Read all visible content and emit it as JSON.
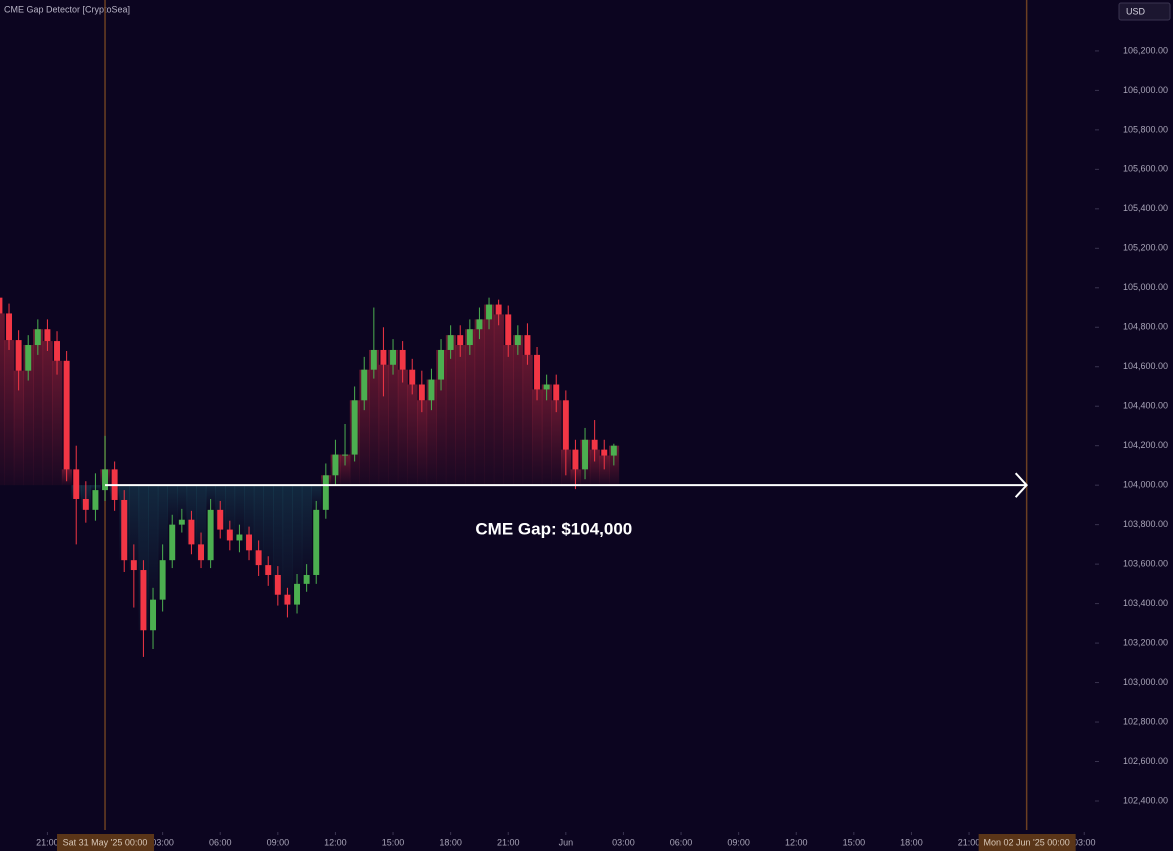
{
  "chart_data": {
    "type": "candlestick",
    "title": "CME Gap Detector [CryptoSea]",
    "currency": "USD",
    "x": [
      -5.5,
      -5,
      -4.5,
      -4,
      -3.5,
      -3,
      -2.5,
      -2,
      -1.5,
      -1,
      -0.5,
      0,
      0.5,
      1,
      1.5,
      2,
      2.5,
      3,
      3.5,
      4,
      4.5,
      5,
      5.5,
      6,
      6.5,
      7,
      7.5,
      8,
      8.5,
      9,
      9.5,
      10,
      10.5,
      11,
      11.5,
      12,
      12.5,
      13,
      13.5,
      14,
      14.5,
      15,
      15.5,
      16,
      16.5,
      17,
      17.5,
      18,
      18.5,
      19,
      19.5,
      20,
      20.5,
      21,
      21.5,
      22,
      22.5,
      23,
      23.5,
      24,
      24.5,
      25,
      25.5,
      26,
      26.5
    ],
    "open": [
      104950,
      104870,
      104735,
      104580,
      104710,
      104790,
      104730,
      104630,
      104080,
      103930,
      103875,
      103975,
      104080,
      103925,
      103620,
      103570,
      103265,
      103420,
      103620,
      103800,
      103825,
      103700,
      103620,
      103875,
      103775,
      103720,
      103750,
      103670,
      103595,
      103545,
      103445,
      103395,
      103500,
      103545,
      103875,
      104050,
      104155,
      104155,
      104430,
      104585,
      104685,
      104610,
      104685,
      104585,
      104510,
      104430,
      104535,
      104685,
      104760,
      104710,
      104790,
      104840,
      104915,
      104865,
      104710,
      104760,
      104660,
      104485,
      104510,
      104430,
      104180,
      104080,
      104230,
      104180,
      104150
    ],
    "high": [
      105000,
      104920,
      104785,
      104760,
      104840,
      104840,
      104780,
      104680,
      104200,
      104020,
      104060,
      104250,
      104120,
      103975,
      103700,
      103620,
      103480,
      103700,
      103850,
      103880,
      103870,
      103760,
      103930,
      103920,
      103820,
      103800,
      103790,
      103720,
      103640,
      103590,
      103480,
      103550,
      103600,
      103920,
      104110,
      104230,
      104310,
      104500,
      104650,
      104900,
      104800,
      104740,
      104730,
      104640,
      104580,
      104590,
      104740,
      104810,
      104810,
      104840,
      104900,
      104950,
      104940,
      104910,
      104810,
      104820,
      104700,
      104560,
      104560,
      104480,
      104230,
      104290,
      104330,
      104230,
      104210
    ],
    "low": [
      104820,
      104685,
      104480,
      104530,
      104660,
      104680,
      104560,
      104020,
      103700,
      103810,
      103820,
      103920,
      103870,
      103560,
      103380,
      103130,
      103170,
      103360,
      103580,
      103760,
      103650,
      103580,
      103580,
      103730,
      103670,
      103660,
      103620,
      103540,
      103490,
      103390,
      103330,
      103350,
      103460,
      103500,
      103830,
      104000,
      104100,
      104120,
      104380,
      104540,
      104450,
      104560,
      104520,
      104460,
      104370,
      104380,
      104480,
      104640,
      104650,
      104660,
      104740,
      104790,
      104810,
      104650,
      104660,
      104610,
      104430,
      104430,
      104370,
      104050,
      103980,
      104030,
      104120,
      104080,
      104100
    ],
    "close": [
      104870,
      104735,
      104580,
      104710,
      104790,
      104730,
      104630,
      104080,
      103930,
      103875,
      103975,
      104080,
      103925,
      103620,
      103570,
      103265,
      103420,
      103620,
      103800,
      103825,
      103700,
      103620,
      103875,
      103775,
      103720,
      103750,
      103670,
      103595,
      103545,
      103445,
      103395,
      103500,
      103545,
      103875,
      104050,
      104155,
      104155,
      104430,
      104585,
      104685,
      104610,
      104685,
      104585,
      104510,
      104430,
      104535,
      104685,
      104760,
      104710,
      104790,
      104840,
      104915,
      104865,
      104710,
      104760,
      104660,
      104485,
      104510,
      104430,
      104180,
      104080,
      104230,
      104180,
      104150,
      104200
    ],
    "up_color": "#4caf50",
    "down_color": "#f23645",
    "xlim": [
      -5.47,
      51.56
    ],
    "ylim": [
      102253,
      106458
    ],
    "xticks": [
      {
        "value": -3,
        "label": "21:00"
      },
      {
        "value": 3,
        "label": "03:00"
      },
      {
        "value": 6,
        "label": "06:00"
      },
      {
        "value": 9,
        "label": "09:00"
      },
      {
        "value": 12,
        "label": "12:00"
      },
      {
        "value": 15,
        "label": "15:00"
      },
      {
        "value": 18,
        "label": "18:00"
      },
      {
        "value": 21,
        "label": "21:00"
      },
      {
        "value": 24,
        "label": "Jun"
      },
      {
        "value": 27,
        "label": "03:00"
      },
      {
        "value": 30,
        "label": "06:00"
      },
      {
        "value": 33,
        "label": "09:00"
      },
      {
        "value": 36,
        "label": "12:00"
      },
      {
        "value": 39,
        "label": "15:00"
      },
      {
        "value": 42,
        "label": "18:00"
      },
      {
        "value": 45,
        "label": "21:00"
      },
      {
        "value": 51,
        "label": "03:00"
      }
    ],
    "yticks": [
      {
        "value": 102400,
        "label": "102,400.00"
      },
      {
        "value": 102600,
        "label": "102,600.00"
      },
      {
        "value": 102800,
        "label": "102,800.00"
      },
      {
        "value": 103000,
        "label": "103,000.00"
      },
      {
        "value": 103200,
        "label": "103,200.00"
      },
      {
        "value": 103400,
        "label": "103,400.00"
      },
      {
        "value": 103600,
        "label": "103,600.00"
      },
      {
        "value": 103800,
        "label": "103,800.00"
      },
      {
        "value": 104000,
        "label": "104,000.00"
      },
      {
        "value": 104200,
        "label": "104,200.00"
      },
      {
        "value": 104400,
        "label": "104,400.00"
      },
      {
        "value": 104600,
        "label": "104,600.00"
      },
      {
        "value": 104800,
        "label": "104,800.00"
      },
      {
        "value": 105000,
        "label": "105,000.00"
      },
      {
        "value": 105200,
        "label": "105,200.00"
      },
      {
        "value": 105400,
        "label": "105,400.00"
      },
      {
        "value": 105600,
        "label": "105,600.00"
      },
      {
        "value": 105800,
        "label": "105,800.00"
      },
      {
        "value": 106000,
        "label": "106,000.00"
      },
      {
        "value": 106200,
        "label": "106,200.00"
      }
    ],
    "sessions": [
      {
        "value": 0,
        "label": "Sat 31 May '25  00:00"
      },
      {
        "value": 48,
        "label": "Mon 02 Jun '25  00:00"
      }
    ],
    "gap": {
      "value": 104000,
      "label": "CME Gap: $104,000"
    }
  }
}
